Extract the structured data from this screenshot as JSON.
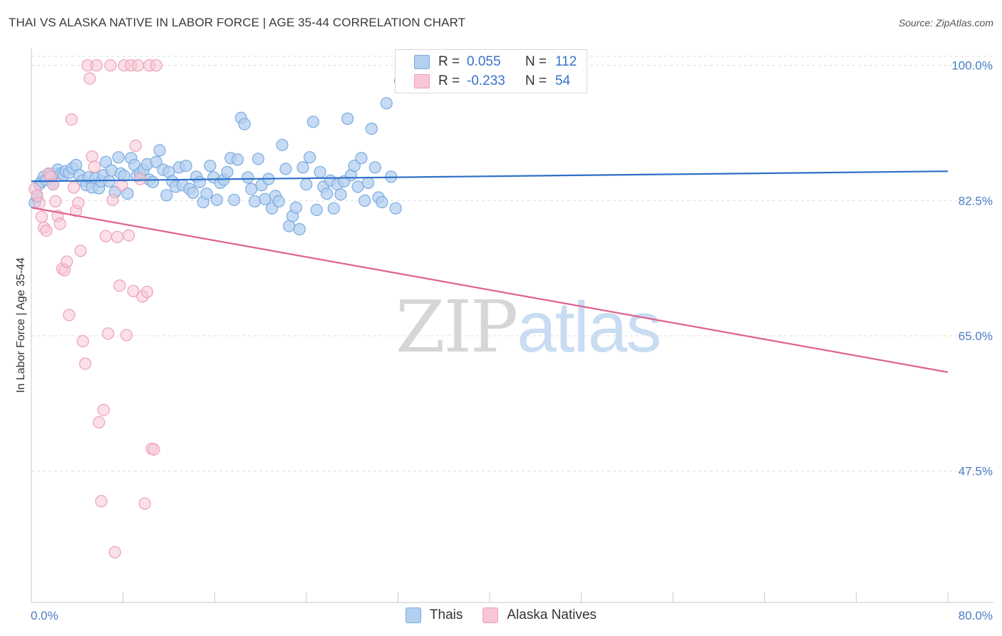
{
  "header": {
    "title": "THAI VS ALASKA NATIVE IN LABOR FORCE | AGE 35-44 CORRELATION CHART",
    "source": "Source: ZipAtlas.com"
  },
  "watermark": {
    "zip": "ZIP",
    "atlas": "atlas"
  },
  "legend": {
    "series": [
      {
        "r_label": "R =",
        "r_value": "0.055",
        "n_label": "N =",
        "n_value": "112"
      },
      {
        "r_label": "R =",
        "r_value": "-0.233",
        "n_label": "N =",
        "n_value": "54"
      }
    ],
    "bottom": [
      "Thais",
      "Alaska Natives"
    ]
  },
  "colors": {
    "blue_fill": "#b4d0f0",
    "blue_stroke": "#7aaae0",
    "blue_line": "#2e6fc8",
    "pink_fill": "#f8c6d4",
    "pink_stroke": "#eda0b8",
    "pink_line": "#e0618f",
    "axis_text": "#4a7cc4"
  },
  "chart_data": {
    "type": "scatter",
    "title": "THAI VS ALASKA NATIVE IN LABOR FORCE | AGE 35-44 CORRELATION CHART",
    "xlabel": "",
    "ylabel": "In Labor Force | Age 35-44",
    "xlim": [
      0,
      80
    ],
    "ylim": [
      30.5,
      102
    ],
    "x_tick_labels": [
      "0.0%",
      "80.0%"
    ],
    "y_ticks": [
      47.5,
      65.0,
      82.5,
      100.0
    ],
    "y_tick_labels": [
      "47.5%",
      "65.0%",
      "82.5%",
      "100.0%"
    ],
    "grid": "horizontal-dashed",
    "series": [
      {
        "name": "Thais",
        "r": 0.055,
        "n": 112,
        "trend": [
          [
            0,
            85.0
          ],
          [
            80,
            86.3
          ]
        ],
        "points": [
          [
            0.3,
            82.2
          ],
          [
            0.5,
            83.0
          ],
          [
            0.7,
            84.6
          ],
          [
            0.9,
            85.0
          ],
          [
            1.1,
            85.6
          ],
          [
            1.3,
            85.2
          ],
          [
            1.6,
            85.9
          ],
          [
            1.9,
            84.6
          ],
          [
            2.1,
            86.0
          ],
          [
            2.3,
            86.5
          ],
          [
            2.6,
            86.0
          ],
          [
            2.8,
            85.8
          ],
          [
            3.0,
            86.3
          ],
          [
            3.3,
            86.1
          ],
          [
            3.6,
            86.7
          ],
          [
            3.9,
            87.1
          ],
          [
            4.2,
            85.8
          ],
          [
            4.5,
            85.1
          ],
          [
            4.8,
            84.5
          ],
          [
            5.0,
            85.5
          ],
          [
            5.3,
            84.2
          ],
          [
            5.6,
            85.4
          ],
          [
            5.9,
            84.1
          ],
          [
            6.1,
            85.0
          ],
          [
            6.3,
            85.8
          ],
          [
            6.5,
            87.5
          ],
          [
            6.8,
            85.0
          ],
          [
            7.0,
            86.4
          ],
          [
            7.3,
            83.6
          ],
          [
            7.6,
            88.1
          ],
          [
            7.8,
            86.0
          ],
          [
            8.1,
            85.7
          ],
          [
            8.4,
            83.4
          ],
          [
            8.7,
            88.0
          ],
          [
            9.0,
            87.1
          ],
          [
            9.2,
            85.7
          ],
          [
            9.5,
            86.1
          ],
          [
            9.8,
            86.5
          ],
          [
            10.1,
            87.2
          ],
          [
            10.3,
            85.2
          ],
          [
            10.6,
            84.9
          ],
          [
            10.9,
            87.5
          ],
          [
            11.2,
            89.0
          ],
          [
            11.5,
            86.5
          ],
          [
            11.8,
            83.2
          ],
          [
            12.0,
            86.2
          ],
          [
            12.3,
            85.0
          ],
          [
            12.6,
            84.3
          ],
          [
            12.9,
            86.8
          ],
          [
            13.2,
            84.5
          ],
          [
            13.5,
            87.0
          ],
          [
            13.8,
            84.0
          ],
          [
            14.1,
            83.5
          ],
          [
            14.4,
            85.6
          ],
          [
            14.7,
            84.9
          ],
          [
            15.0,
            82.3
          ],
          [
            15.3,
            83.4
          ],
          [
            15.6,
            87.0
          ],
          [
            15.9,
            85.5
          ],
          [
            16.2,
            82.6
          ],
          [
            16.5,
            84.8
          ],
          [
            16.8,
            85.2
          ],
          [
            17.1,
            86.2
          ],
          [
            17.4,
            88.0
          ],
          [
            17.7,
            82.6
          ],
          [
            18.0,
            87.8
          ],
          [
            18.3,
            93.2
          ],
          [
            18.6,
            92.4
          ],
          [
            18.9,
            85.5
          ],
          [
            19.2,
            84.0
          ],
          [
            19.5,
            82.4
          ],
          [
            19.8,
            87.9
          ],
          [
            20.1,
            84.5
          ],
          [
            20.4,
            82.7
          ],
          [
            20.7,
            85.3
          ],
          [
            21.0,
            81.5
          ],
          [
            21.3,
            83.1
          ],
          [
            21.6,
            82.4
          ],
          [
            21.9,
            89.7
          ],
          [
            22.2,
            86.6
          ],
          [
            22.5,
            79.2
          ],
          [
            22.8,
            80.5
          ],
          [
            23.1,
            81.6
          ],
          [
            23.4,
            78.8
          ],
          [
            23.7,
            86.8
          ],
          [
            24.0,
            84.6
          ],
          [
            24.3,
            88.1
          ],
          [
            24.6,
            92.7
          ],
          [
            24.9,
            81.3
          ],
          [
            25.2,
            86.2
          ],
          [
            25.5,
            84.3
          ],
          [
            25.8,
            83.4
          ],
          [
            26.1,
            85.1
          ],
          [
            26.4,
            81.5
          ],
          [
            26.7,
            84.6
          ],
          [
            27.0,
            83.3
          ],
          [
            27.3,
            85.0
          ],
          [
            27.6,
            93.1
          ],
          [
            27.9,
            85.8
          ],
          [
            28.2,
            87.0
          ],
          [
            28.5,
            84.3
          ],
          [
            28.8,
            88.0
          ],
          [
            29.1,
            82.5
          ],
          [
            29.4,
            84.8
          ],
          [
            29.7,
            91.8
          ],
          [
            30.0,
            86.8
          ],
          [
            30.3,
            82.9
          ],
          [
            30.6,
            82.3
          ],
          [
            31.0,
            95.1
          ],
          [
            31.4,
            85.6
          ],
          [
            31.8,
            81.5
          ],
          [
            32.2,
            98.0
          ]
        ]
      },
      {
        "name": "Alaska Natives",
        "r": -0.233,
        "n": 54,
        "trend": [
          [
            0,
            81.6
          ],
          [
            80,
            60.3
          ]
        ],
        "points": [
          [
            0.3,
            84.0
          ],
          [
            0.5,
            83.2
          ],
          [
            0.7,
            82.2
          ],
          [
            0.9,
            80.4
          ],
          [
            1.1,
            79.0
          ],
          [
            1.3,
            78.6
          ],
          [
            1.5,
            86.0
          ],
          [
            1.7,
            85.6
          ],
          [
            1.9,
            84.6
          ],
          [
            2.1,
            82.4
          ],
          [
            2.3,
            80.5
          ],
          [
            2.5,
            79.5
          ],
          [
            2.7,
            73.7
          ],
          [
            2.9,
            73.5
          ],
          [
            3.1,
            74.6
          ],
          [
            3.3,
            67.7
          ],
          [
            3.5,
            93.0
          ],
          [
            3.7,
            84.2
          ],
          [
            3.9,
            81.2
          ],
          [
            4.1,
            82.2
          ],
          [
            4.3,
            76.0
          ],
          [
            4.5,
            64.3
          ],
          [
            4.7,
            61.4
          ],
          [
            4.9,
            100.0
          ],
          [
            5.1,
            98.3
          ],
          [
            5.3,
            88.2
          ],
          [
            5.5,
            86.9
          ],
          [
            5.7,
            100.0
          ],
          [
            5.9,
            53.8
          ],
          [
            6.1,
            43.6
          ],
          [
            6.3,
            55.4
          ],
          [
            6.5,
            77.9
          ],
          [
            6.7,
            65.3
          ],
          [
            6.9,
            100.0
          ],
          [
            7.1,
            82.6
          ],
          [
            7.3,
            37.0
          ],
          [
            7.5,
            77.8
          ],
          [
            7.7,
            71.5
          ],
          [
            7.9,
            84.5
          ],
          [
            8.1,
            100.0
          ],
          [
            8.3,
            65.1
          ],
          [
            8.5,
            78.0
          ],
          [
            8.7,
            100.0
          ],
          [
            8.9,
            70.8
          ],
          [
            9.1,
            89.6
          ],
          [
            9.3,
            100.0
          ],
          [
            9.5,
            85.3
          ],
          [
            9.7,
            70.1
          ],
          [
            9.9,
            43.3
          ],
          [
            10.1,
            70.7
          ],
          [
            10.3,
            100.0
          ],
          [
            10.5,
            50.4
          ],
          [
            10.7,
            50.3
          ],
          [
            10.9,
            100.0
          ]
        ]
      }
    ]
  }
}
